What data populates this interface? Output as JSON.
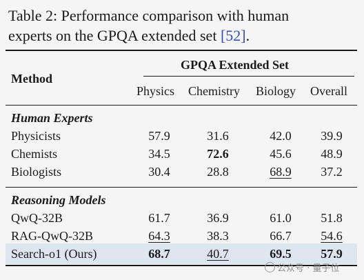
{
  "caption": {
    "line1": "Table 2: Performance comparison with human",
    "line2_before": "experts on the GPQA extended set ",
    "ref": "[52]",
    "line2_after": "."
  },
  "header": {
    "method": "Method",
    "group": "GPQA Extended Set",
    "columns": [
      "Physics",
      "Chemistry",
      "Biology",
      "Overall"
    ]
  },
  "sections": [
    {
      "title": "Human Experts",
      "rows": [
        {
          "method": "Physicists",
          "values": [
            "57.9",
            "31.6",
            "42.0",
            "39.9"
          ]
        },
        {
          "method": "Chemists",
          "values": [
            "34.5",
            "72.6",
            "45.6",
            "48.9"
          ]
        },
        {
          "method": "Biologists",
          "values": [
            "30.4",
            "28.8",
            "68.9",
            "37.2"
          ]
        }
      ]
    },
    {
      "title": "Reasoning Models",
      "rows": [
        {
          "method": "QwQ-32B",
          "values": [
            "61.7",
            "36.9",
            "61.0",
            "51.8"
          ]
        },
        {
          "method": "RAG-QwQ-32B",
          "values": [
            "64.3",
            "38.3",
            "66.7",
            "54.6"
          ]
        },
        {
          "method": "Search-o1 (Ours)",
          "values": [
            "68.7",
            "40.7",
            "69.5",
            "57.9"
          ]
        }
      ]
    }
  ],
  "watermark": "公众号 · 量子位"
}
